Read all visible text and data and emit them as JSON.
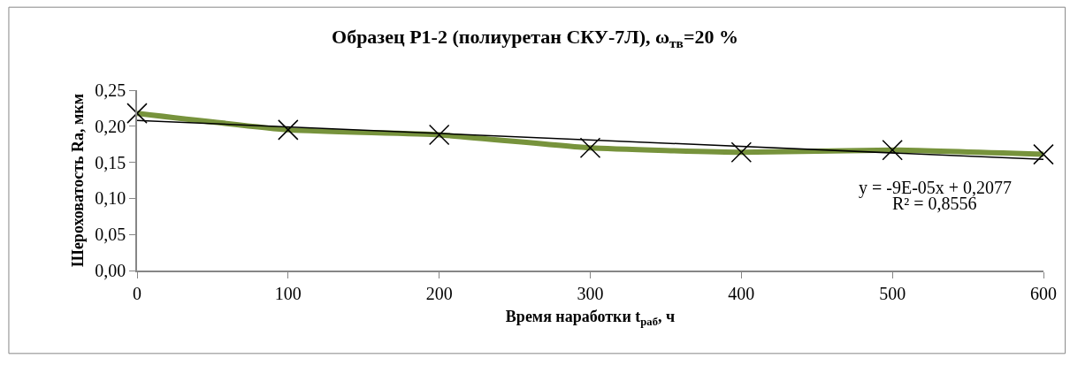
{
  "chart_data": {
    "type": "line",
    "title": "Образец Р1-2 (полиуретан СКУ-7Л), ω$_{тв}$=20 %",
    "xlabel": "Время наработки t$_{раб}$, ч",
    "ylabel": "Шероховатость Ra, мкм",
    "x": [
      0,
      100,
      200,
      300,
      400,
      500,
      600
    ],
    "series": [
      {
        "color": "#77933c",
        "values": [
          0.218,
          0.195,
          0.188,
          0.17,
          0.164,
          0.167,
          0.161
        ],
        "marker": "cross"
      },
      {
        "type": "line",
        "color": "#000000",
        "x": [
          0,
          600
        ],
        "values": [
          0.208,
          0.154
        ],
        "marker": "none"
      }
    ],
    "xlim": [
      0,
      600
    ],
    "xticks": [
      0,
      100,
      200,
      300,
      400,
      500,
      600
    ],
    "ylim": [
      0,
      0.25
    ],
    "yticks": [
      {
        "value": 0,
        "label": "0,00"
      },
      {
        "value": 0.05,
        "label": "0,05"
      },
      {
        "value": 0.1,
        "label": "0,10"
      },
      {
        "value": 0.15,
        "label": "0,15"
      },
      {
        "value": 0.2,
        "label": "0,20"
      },
      {
        "value": 0.25,
        "label": "0,25"
      }
    ],
    "annotations": [
      "y = -9E-05x + 0,2077",
      "R² = 0,8556"
    ]
  }
}
